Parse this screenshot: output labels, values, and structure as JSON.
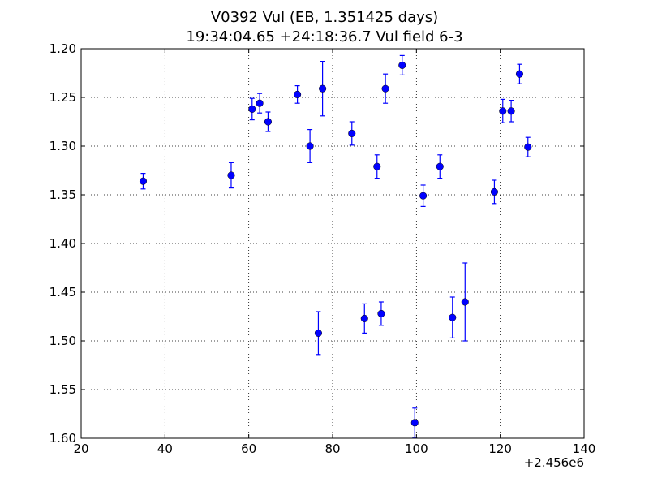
{
  "chart_data": {
    "type": "scatter",
    "title": "V0392 Vul (EB, 1.351425 days)",
    "subtitle": "19:34:04.65 +24:18:36.7 Vul field 6-3",
    "xlabel": "",
    "ylabel": "",
    "x_offset_label": "+2.456e6",
    "xlim": [
      20,
      140
    ],
    "ylim": [
      1.6,
      1.2
    ],
    "y_inverted": true,
    "grid": true,
    "x_ticks": [
      "20",
      "40",
      "60",
      "80",
      "100",
      "120",
      "140"
    ],
    "y_ticks": [
      "1.20",
      "1.25",
      "1.30",
      "1.35",
      "1.40",
      "1.45",
      "1.50",
      "1.55",
      "1.60"
    ],
    "marker_color": "#0000ff",
    "points": [
      {
        "x": 34.8,
        "y": 1.336,
        "err": 0.008
      },
      {
        "x": 55.8,
        "y": 1.33,
        "err": 0.013
      },
      {
        "x": 60.8,
        "y": 1.262,
        "err": 0.011
      },
      {
        "x": 62.6,
        "y": 1.256,
        "err": 0.01
      },
      {
        "x": 64.6,
        "y": 1.275,
        "err": 0.01
      },
      {
        "x": 71.6,
        "y": 1.247,
        "err": 0.009
      },
      {
        "x": 74.6,
        "y": 1.3,
        "err": 0.017
      },
      {
        "x": 76.6,
        "y": 1.492,
        "err": 0.022
      },
      {
        "x": 77.6,
        "y": 1.241,
        "err": 0.028
      },
      {
        "x": 84.6,
        "y": 1.287,
        "err": 0.012
      },
      {
        "x": 87.6,
        "y": 1.477,
        "err": 0.015
      },
      {
        "x": 90.6,
        "y": 1.321,
        "err": 0.012
      },
      {
        "x": 91.6,
        "y": 1.472,
        "err": 0.012
      },
      {
        "x": 92.6,
        "y": 1.241,
        "err": 0.015
      },
      {
        "x": 96.6,
        "y": 1.217,
        "err": 0.01
      },
      {
        "x": 99.6,
        "y": 1.584,
        "err": 0.015
      },
      {
        "x": 101.6,
        "y": 1.351,
        "err": 0.011
      },
      {
        "x": 105.6,
        "y": 1.321,
        "err": 0.012
      },
      {
        "x": 108.6,
        "y": 1.476,
        "err": 0.021
      },
      {
        "x": 111.6,
        "y": 1.46,
        "err": 0.04
      },
      {
        "x": 118.6,
        "y": 1.347,
        "err": 0.012
      },
      {
        "x": 120.6,
        "y": 1.264,
        "err": 0.012
      },
      {
        "x": 122.6,
        "y": 1.264,
        "err": 0.011
      },
      {
        "x": 124.6,
        "y": 1.226,
        "err": 0.01
      },
      {
        "x": 126.6,
        "y": 1.301,
        "err": 0.01
      }
    ]
  }
}
